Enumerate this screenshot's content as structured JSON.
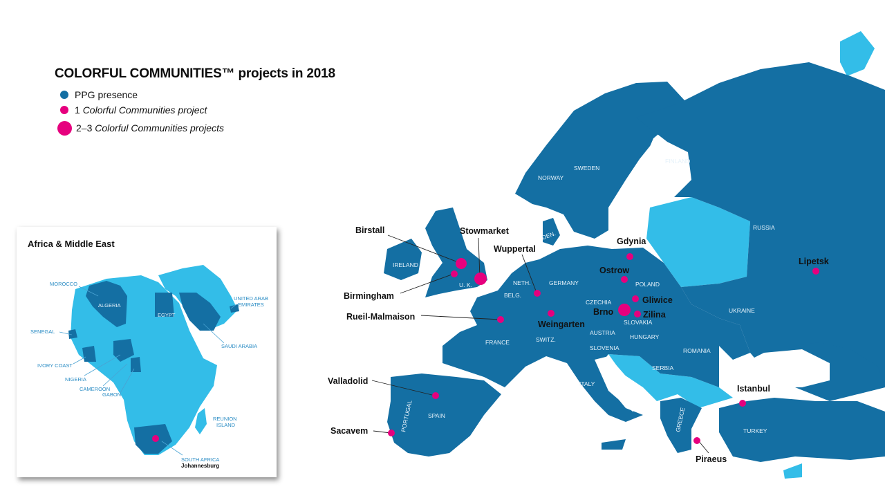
{
  "title": "COLORFUL COMMUNITIES™ projects in 2018",
  "legend": {
    "presence": "PPG presence",
    "one_prefix": "1 ",
    "one_italic": "Colorful Communities project",
    "multi_prefix": "2–3 ",
    "multi_italic": "Colorful Communities projects"
  },
  "colors": {
    "presence": "#146fa3",
    "no_presence": "#33bde8",
    "project_marker": "#e6007e"
  },
  "africa_inset": {
    "heading": "Africa & Middle East",
    "labels": {
      "morocco": "MOROCCO",
      "algeria": "ALGERIA",
      "egypt": "EGYPT",
      "uae_line1": "UNITED ARAB",
      "uae_line2": "EMIRATES",
      "saudi": "SAUDI ARABIA",
      "senegal": "SENEGAL",
      "ivory": "IVORY COAST",
      "nigeria": "NIGERIA",
      "cameroon": "CAMEROON",
      "gabon": "GABON",
      "reunion_line1": "REUNION",
      "reunion_line2": "ISLAND",
      "south_africa": "SOUTH AFRICA",
      "johannesburg": "Johannesburg"
    }
  },
  "europe": {
    "countries": {
      "sweden": "SWEDEN",
      "norway": "NORWAY",
      "finland": "FINLAND",
      "russia": "RUSSIA",
      "den": "DEN.",
      "ireland": "IRELAND",
      "uk": "U. K.",
      "neth": "NETH.",
      "belg": "BELG.",
      "germany": "GERMANY",
      "poland": "POLAND",
      "czechia": "CZECHIA",
      "slovakia": "SLOVAKIA",
      "ukraine": "UKRAINE",
      "france": "FRANCE",
      "switz": "SWITZ.",
      "austria": "AUSTRIA",
      "hungary": "HUNGARY",
      "slovenia": "SLOVENIA",
      "romania": "ROMANIA",
      "serbia": "SERBIA",
      "italy": "ITALY",
      "spain": "SPAIN",
      "portugal": "PORTUGAL",
      "greece": "GREECE",
      "turkey": "TURKEY"
    },
    "cities": {
      "birstall": "Birstall",
      "stowmarket": "Stowmarket",
      "wuppertal": "Wuppertal",
      "birmingham": "Birmingham",
      "rueil": "Rueil-Malmaison",
      "weingarten": "Weingarten",
      "gdynia": "Gdynia",
      "ostrow": "Ostrow",
      "gliwice": "Gliwice",
      "brno": "Brno",
      "zilina": "Zilina",
      "lipetsk": "Lipetsk",
      "istanbul": "Istanbul",
      "valladolid": "Valladolid",
      "sacavem": "Sacavem",
      "piraeus": "Piraeus"
    }
  }
}
